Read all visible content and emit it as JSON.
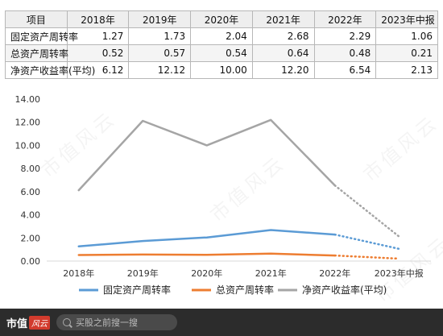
{
  "table": {
    "corner_label": "项目",
    "headers": [
      "2018年",
      "2019年",
      "2020年",
      "2021年",
      "2022年",
      "2023年中报"
    ],
    "rows": [
      {
        "label": "固定资产周转率",
        "values": [
          "1.27",
          "1.73",
          "2.04",
          "2.68",
          "2.29",
          "1.06"
        ]
      },
      {
        "label": "总资产周转率",
        "values": [
          "0.52",
          "0.57",
          "0.54",
          "0.64",
          "0.48",
          "0.21"
        ]
      },
      {
        "label": "净资产收益率(平均)",
        "values": [
          "6.12",
          "12.12",
          "10.00",
          "12.20",
          "6.54",
          "2.13"
        ]
      }
    ]
  },
  "chart_data": {
    "type": "line",
    "categories": [
      "2018年",
      "2019年",
      "2020年",
      "2021年",
      "2022年",
      "2023年中报"
    ],
    "series": [
      {
        "name": "固定资产周转率",
        "color": "#5b9bd5",
        "values": [
          1.27,
          1.73,
          2.04,
          2.68,
          2.29,
          1.06
        ]
      },
      {
        "name": "总资产周转率",
        "color": "#ed7d31",
        "values": [
          0.52,
          0.57,
          0.54,
          0.64,
          0.48,
          0.21
        ]
      },
      {
        "name": "净资产收益率(平均)",
        "color": "#a5a5a5",
        "values": [
          6.12,
          12.12,
          10.0,
          12.2,
          6.54,
          2.13
        ]
      }
    ],
    "ylim": [
      0,
      14
    ],
    "y_ticks": [
      "0.00",
      "2.00",
      "4.00",
      "6.00",
      "8.00",
      "10.00",
      "12.00",
      "14.00"
    ],
    "last_segment_style": "dotted",
    "grid": false,
    "legend_position": "bottom",
    "title": "",
    "xlabel": "",
    "ylabel": ""
  },
  "watermark": {
    "text": "市值风云"
  },
  "footer": {
    "brand": "市值",
    "brand_mark": "风云",
    "search_placeholder": "买股之前搜一搜"
  }
}
